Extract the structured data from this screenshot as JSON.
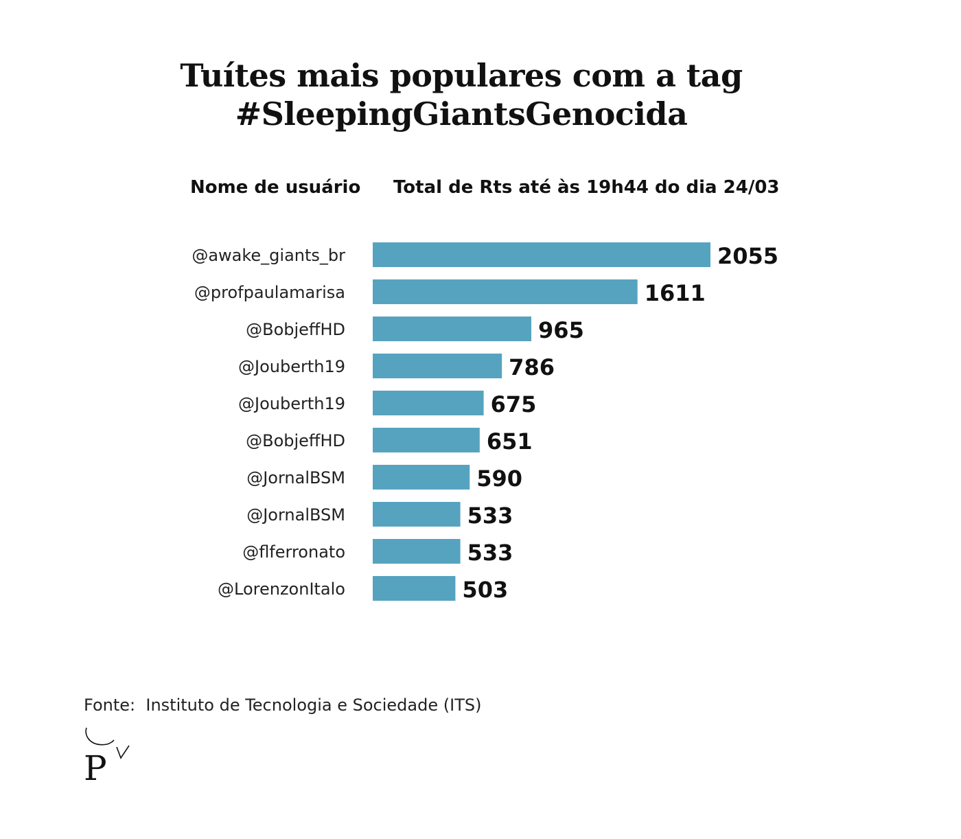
{
  "chart_data": {
    "type": "bar",
    "orientation": "horizontal",
    "title": "Tuítes mais populares com a tag #SleepingGiantsGenocida",
    "title_lines": [
      "Tuítes mais populares com a tag",
      "#SleepingGiantsGenocida"
    ],
    "category_header": "Nome de usuário",
    "value_header": "Total de Rts até às 19h44 do dia 24/03",
    "categories": [
      "@awake_giants_br",
      "@profpaulamarisa",
      "@BobjeffHD",
      "@Jouberth19",
      "@Jouberth19",
      "@BobjeffHD",
      "@JornalBSM",
      "@JornalBSM",
      "@flferronato",
      "@LorenzonItalo"
    ],
    "values": [
      2055,
      1611,
      965,
      786,
      675,
      651,
      590,
      533,
      533,
      503
    ],
    "bar_color": "#56a3c0",
    "grid": false,
    "legend": "none"
  },
  "source": "Fonte:  Instituto de Tecnologia e Sociedade (ITS)",
  "logo": {
    "text": "P",
    "icon": "poder360-logo-icon"
  }
}
